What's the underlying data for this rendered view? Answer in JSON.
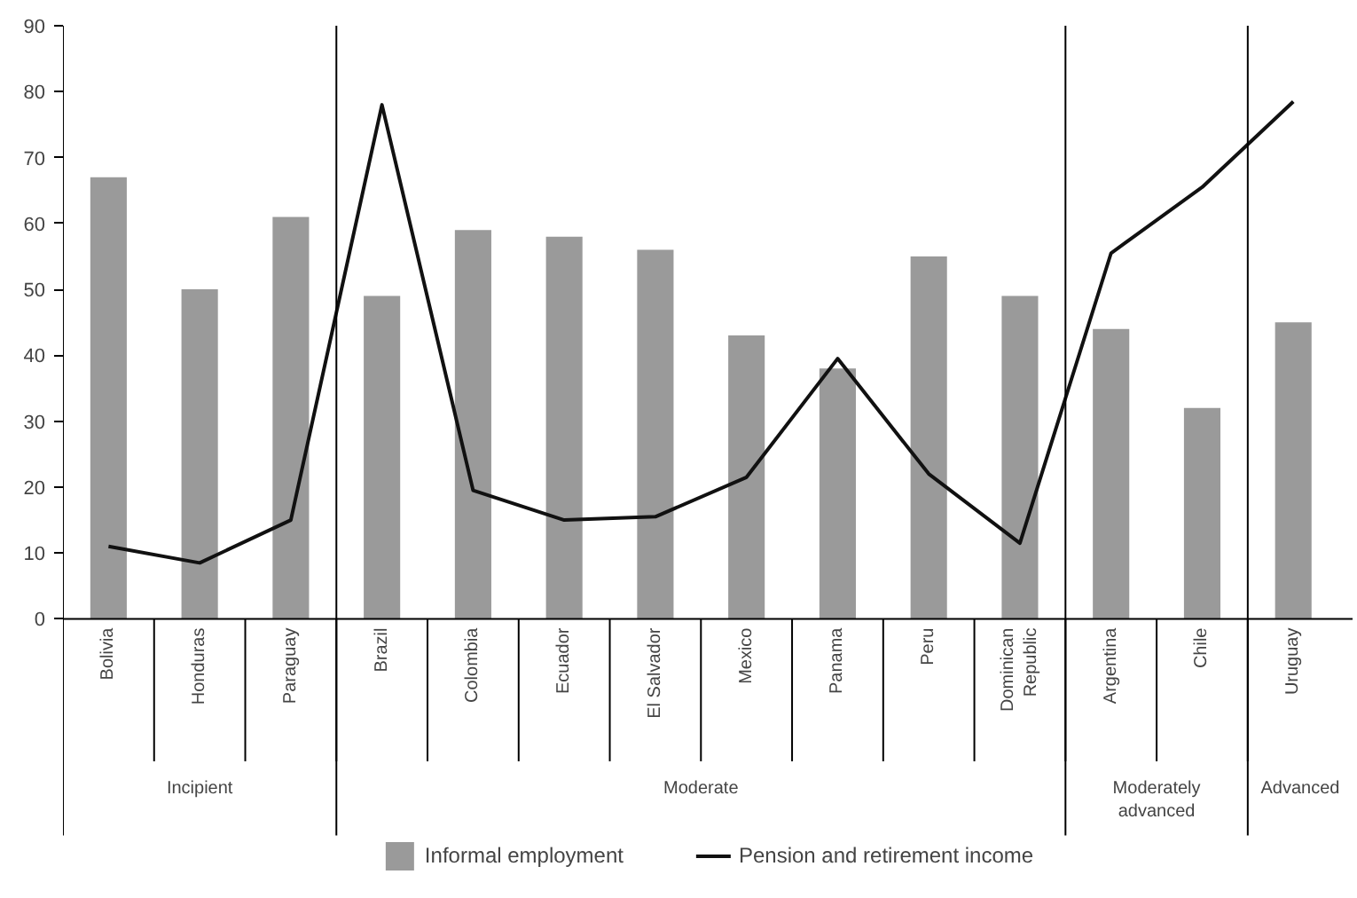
{
  "chart_data": {
    "type": "bar",
    "categories": [
      "Bolivia",
      "Honduras",
      "Paraguay",
      "Brazil",
      "Colombia",
      "Ecuador",
      "El Salvador",
      "Mexico",
      "Panama",
      "Peru",
      "Dominican\nRepublic",
      "Argentina",
      "Chile",
      "Uruguay"
    ],
    "series": [
      {
        "name": "Informal employment",
        "color": "#9a9a9a",
        "values": [
          67,
          50,
          61,
          49,
          59,
          58,
          56,
          43,
          38,
          55,
          49,
          44,
          32,
          45
        ]
      },
      {
        "name": "Pension and retirement income",
        "type": "line",
        "color": "#111111",
        "values": [
          11,
          8.5,
          15,
          78,
          19.5,
          15,
          15.5,
          21.5,
          39.5,
          22,
          11.5,
          55.5,
          65.5,
          78.5
        ]
      }
    ],
    "ylim": [
      0,
      90
    ],
    "yticks": [
      0,
      10,
      20,
      30,
      40,
      50,
      60,
      70,
      80,
      90
    ],
    "grid": false,
    "legend": "bottom",
    "annotations": [
      "Incipient",
      "Moderate",
      "Moderately\nadvanced",
      "Advanced"
    ]
  }
}
